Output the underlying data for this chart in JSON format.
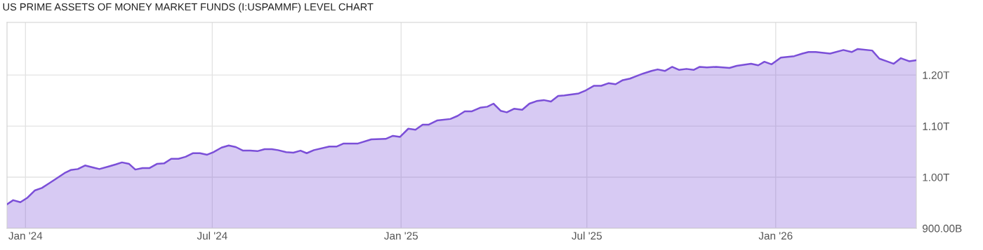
{
  "chart_data": {
    "type": "area",
    "title": "US PRIME ASSETS OF MONEY MARKET FUNDS (I:USPAMMF) LEVEL CHART",
    "x": [
      "2023-12-14",
      "2023-12-20",
      "2023-12-27",
      "2024-01-03",
      "2024-01-10",
      "2024-01-17",
      "2024-01-24",
      "2024-01-30",
      "2024-02-08",
      "2024-02-14",
      "2024-02-21",
      "2024-02-28",
      "2024-03-07",
      "2024-03-13",
      "2024-03-22",
      "2024-03-29",
      "2024-04-04",
      "2024-04-11",
      "2024-04-17",
      "2024-04-24",
      "2024-05-01",
      "2024-05-08",
      "2024-05-15",
      "2024-05-22",
      "2024-05-29",
      "2024-06-05",
      "2024-06-12",
      "2024-06-19",
      "2024-06-26",
      "2024-07-02",
      "2024-07-10",
      "2024-07-17",
      "2024-07-24",
      "2024-07-31",
      "2024-08-07",
      "2024-08-14",
      "2024-08-21",
      "2024-08-28",
      "2024-09-03",
      "2024-09-11",
      "2024-09-18",
      "2024-09-25",
      "2024-10-01",
      "2024-10-08",
      "2024-10-23",
      "2024-10-30",
      "2024-11-06",
      "2024-11-20",
      "2024-12-03",
      "2024-12-17",
      "2024-12-24",
      "2024-12-31",
      "2025-01-08",
      "2025-01-15",
      "2025-01-22",
      "2025-01-28",
      "2025-02-05",
      "2025-02-18",
      "2025-02-25",
      "2025-03-04",
      "2025-03-11",
      "2025-03-19",
      "2025-03-26",
      "2025-04-01",
      "2025-04-08",
      "2025-04-14",
      "2025-04-21",
      "2025-04-29",
      "2025-05-06",
      "2025-05-13",
      "2025-05-20",
      "2025-05-27",
      "2025-06-03",
      "2025-06-09",
      "2025-06-23",
      "2025-06-30",
      "2025-07-08",
      "2025-07-15",
      "2025-07-22",
      "2025-07-29",
      "2025-08-05",
      "2025-08-12",
      "2025-08-17",
      "2025-08-25",
      "2025-09-02",
      "2025-09-08",
      "2025-09-15",
      "2025-09-22",
      "2025-09-29",
      "2025-10-06",
      "2025-10-13",
      "2025-10-19",
      "2025-10-26",
      "2025-11-04",
      "2025-11-17",
      "2025-11-24",
      "2025-12-08",
      "2025-12-15",
      "2025-12-21",
      "2025-12-28",
      "2026-01-06",
      "2026-01-19",
      "2026-01-27",
      "2026-02-02",
      "2026-02-09",
      "2026-02-23",
      "2026-03-08",
      "2026-03-16",
      "2026-03-22",
      "2026-04-05",
      "2026-04-12",
      "2026-04-19",
      "2026-04-26",
      "2026-05-03",
      "2026-05-11",
      "2026-05-18"
    ],
    "series": [
      {
        "color": "#7b4fd8",
        "values": [
          947000000000.0,
          955000000000.0,
          951000000000.0,
          960000000000.0,
          974000000000.0,
          979000000000.0,
          988000000000.0,
          996000000000.0,
          1008000000000.0,
          1014000000000.0,
          1016000000000.0,
          1023000000000.0,
          1019000000000.0,
          1016000000000.0,
          1021000000000.0,
          1025000000000.0,
          1029000000000.0,
          1026000000000.0,
          1015000000000.0,
          1018000000000.0,
          1018000000000.0,
          1026000000000.0,
          1027000000000.0,
          1036000000000.0,
          1036000000000.0,
          1040000000000.0,
          1047000000000.0,
          1047000000000.0,
          1044000000000.0,
          1049000000000.0,
          1058000000000.0,
          1062000000000.0,
          1059000000000.0,
          1052000000000.0,
          1052000000000.0,
          1051000000000.0,
          1055000000000.0,
          1055000000000.0,
          1053000000000.0,
          1049000000000.0,
          1048000000000.0,
          1052000000000.0,
          1047000000000.0,
          1053000000000.0,
          1060000000000.0,
          1060000000000.0,
          1066000000000.0,
          1066000000000.0,
          1074000000000.0,
          1075000000000.0,
          1081000000000.0,
          1079000000000.0,
          1095000000000.0,
          1093000000000.0,
          1103000000000.0,
          1103000000000.0,
          1111000000000.0,
          1114000000000.0,
          1120000000000.0,
          1129000000000.0,
          1129000000000.0,
          1136000000000.0,
          1138000000000.0,
          1144000000000.0,
          1130000000000.0,
          1127000000000.0,
          1134000000000.0,
          1132000000000.0,
          1144000000000.0,
          1149000000000.0,
          1151000000000.0,
          1148000000000.0,
          1159000000000.0,
          1160000000000.0,
          1164000000000.0,
          1170000000000.0,
          1179000000000.0,
          1179000000000.0,
          1184000000000.0,
          1182000000000.0,
          1190000000000.0,
          1193000000000.0,
          1197000000000.0,
          1203000000000.0,
          1208000000000.0,
          1211000000000.0,
          1208000000000.0,
          1216000000000.0,
          1210000000000.0,
          1212000000000.0,
          1210000000000.0,
          1216000000000.0,
          1215000000000.0,
          1216000000000.0,
          1214000000000.0,
          1218000000000.0,
          1222000000000.0,
          1219000000000.0,
          1226000000000.0,
          1221000000000.0,
          1234000000000.0,
          1237000000000.0,
          1242000000000.0,
          1245000000000.0,
          1245000000000.0,
          1242000000000.0,
          1249000000000.0,
          1245000000000.0,
          1251000000000.0,
          1248000000000.0,
          1232000000000.0,
          1227000000000.0,
          1222000000000.0,
          1233000000000.0,
          1227000000000.0,
          1229000000000.0
        ]
      }
    ],
    "xlim": [
      "2023-12-14",
      "2026-05-18"
    ],
    "xticks": [
      {
        "value": "2024-01-01",
        "label": "Jan '24"
      },
      {
        "value": "2024-07-01",
        "label": "Jul '24"
      },
      {
        "value": "2025-01-01",
        "label": "Jan '25"
      },
      {
        "value": "2025-07-01",
        "label": "Jul '25"
      },
      {
        "value": "2026-01-01",
        "label": "Jan '26"
      }
    ],
    "ylim": [
      900000000000.0,
      1303000000000.0
    ],
    "yticks": [
      {
        "value": 900000000000.0,
        "label": "900.00B"
      },
      {
        "value": 1000000000000.0,
        "label": "1.00T"
      },
      {
        "value": 1100000000000.0,
        "label": "1.10T"
      },
      {
        "value": 1200000000000.0,
        "label": "1.20T"
      }
    ],
    "grid": true
  }
}
